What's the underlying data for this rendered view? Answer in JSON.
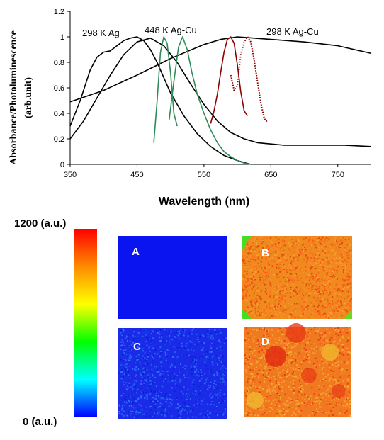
{
  "chart_data": {
    "type": "line",
    "title": "",
    "xlabel": "Wavelength (nm)",
    "ylabel_line1": "Absorbance/Photoluminescence",
    "ylabel_line2": "(arb.unit)",
    "xlim": [
      350,
      800
    ],
    "ylim": [
      0,
      1.2
    ],
    "x_ticks": [
      "350",
      "450",
      "550",
      "650",
      "750"
    ],
    "y_ticks": [
      "0",
      "0.2",
      "0.4",
      "0.6",
      "0.8",
      "1",
      "1.2"
    ],
    "grid": false,
    "annotations": [
      "298 K Ag",
      "448 K Ag-Cu",
      "298 K Ag-Cu"
    ],
    "series": [
      {
        "color": "#000000",
        "style": "solid",
        "x": [
          350,
          365,
          380,
          390,
          400,
          410,
          420,
          430,
          440,
          450,
          460,
          470,
          480,
          490,
          500,
          520,
          540,
          560,
          580,
          600,
          620
        ],
        "y": [
          0.3,
          0.5,
          0.74,
          0.84,
          0.88,
          0.89,
          0.93,
          0.97,
          0.99,
          1.0,
          0.97,
          0.9,
          0.8,
          0.68,
          0.56,
          0.38,
          0.24,
          0.14,
          0.07,
          0.03,
          0.0
        ]
      },
      {
        "color": "#000000",
        "style": "solid",
        "x": [
          350,
          370,
          390,
          410,
          430,
          450,
          470,
          490,
          510,
          530,
          550,
          570,
          590,
          610,
          630,
          650,
          670,
          690,
          710,
          730,
          760,
          800
        ],
        "y": [
          0.2,
          0.34,
          0.52,
          0.7,
          0.86,
          0.96,
          0.99,
          0.93,
          0.8,
          0.63,
          0.47,
          0.34,
          0.25,
          0.2,
          0.17,
          0.16,
          0.15,
          0.15,
          0.15,
          0.15,
          0.15,
          0.14
        ]
      },
      {
        "color": "#000000",
        "style": "solid",
        "x": [
          350,
          400,
          450,
          500,
          550,
          575,
          600,
          625,
          650,
          700,
          750,
          800
        ],
        "y": [
          0.49,
          0.58,
          0.7,
          0.83,
          0.94,
          0.98,
          1.0,
          0.99,
          0.98,
          0.96,
          0.93,
          0.87
        ]
      },
      {
        "color": "#2e8b57",
        "style": "solid",
        "x": [
          475,
          480,
          485,
          490,
          495,
          500,
          505,
          510
        ],
        "y": [
          0.17,
          0.5,
          0.88,
          1.0,
          0.95,
          0.72,
          0.4,
          0.3
        ]
      },
      {
        "color": "#2e8b57",
        "style": "solid",
        "x": [
          498,
          505,
          512,
          518,
          525,
          532,
          540,
          550,
          560,
          570,
          580,
          590,
          600,
          610,
          620
        ],
        "y": [
          0.35,
          0.65,
          0.92,
          1.0,
          0.9,
          0.72,
          0.55,
          0.4,
          0.27,
          0.17,
          0.1,
          0.06,
          0.03,
          0.01,
          0.0
        ]
      },
      {
        "color": "#8b0000",
        "style": "solid",
        "x": [
          560,
          565,
          570,
          575,
          580,
          585,
          590,
          595,
          600,
          605,
          610,
          615
        ],
        "y": [
          0.32,
          0.42,
          0.55,
          0.72,
          0.88,
          0.98,
          1.0,
          0.95,
          0.78,
          0.57,
          0.42,
          0.38
        ]
      },
      {
        "color": "#8b0000",
        "style": "dotted",
        "x": [
          590,
          595,
          600,
          605,
          610,
          615,
          620,
          625,
          630,
          635,
          640,
          645
        ],
        "y": [
          0.7,
          0.58,
          0.62,
          0.86,
          0.96,
          1.0,
          0.96,
          0.82,
          0.65,
          0.48,
          0.36,
          0.33
        ]
      }
    ]
  },
  "colorbar": {
    "max_label": "1200 (a.u.)",
    "min_label": "0 (a.u.)",
    "colors": [
      "#ff0000",
      "#ff8c00",
      "#ffff00",
      "#00ff00",
      "#00ffff",
      "#0000ff"
    ]
  },
  "panels": [
    {
      "label": "A",
      "base_color": "#0a14f0",
      "speckle_colors": [
        "#0a14f0"
      ]
    },
    {
      "label": "B",
      "base_color": "#f08a1e",
      "speckle_colors": [
        "#f5a030",
        "#e04a10",
        "#f07a20",
        "#ff5a18"
      ]
    },
    {
      "label": "C",
      "base_color": "#1a2ae8",
      "speckle_colors": [
        "#2a60f0",
        "#1040e0",
        "#3070ff",
        "#0a20d0"
      ]
    },
    {
      "label": "D",
      "base_color": "#f07a20",
      "speckle_colors": [
        "#f5a030",
        "#e83a15",
        "#ff6820",
        "#f0b030"
      ]
    }
  ]
}
